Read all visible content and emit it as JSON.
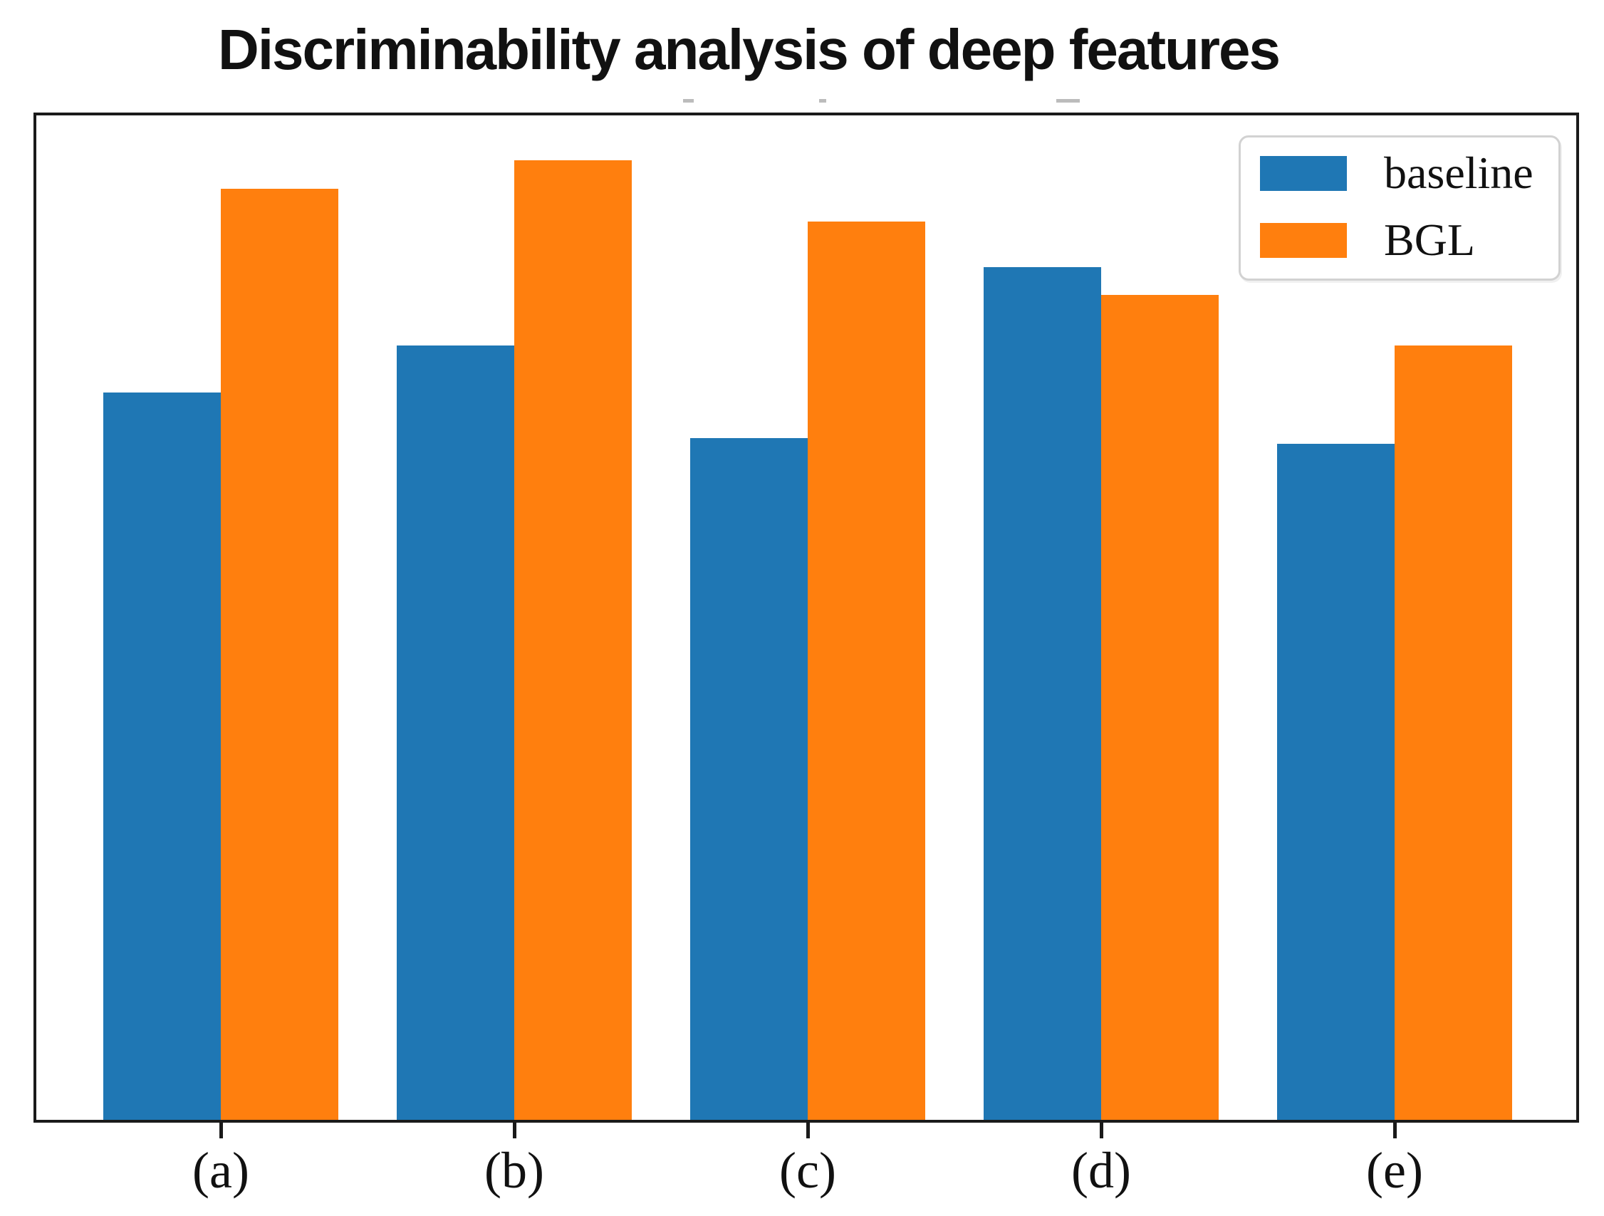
{
  "chart_data": {
    "type": "bar",
    "title": "Discriminability analysis of deep features",
    "categories": [
      "(a)",
      "(b)",
      "(c)",
      "(d)",
      "(e)"
    ],
    "series": [
      {
        "name": "baseline",
        "color": "#1f77b4",
        "values": [
          0.724,
          0.771,
          0.679,
          0.849,
          0.673
        ]
      },
      {
        "name": "BGL",
        "color": "#ff7f0e",
        "values": [
          0.927,
          0.955,
          0.894,
          0.821,
          0.771
        ]
      }
    ],
    "xlabel": "",
    "ylabel": "",
    "ylim": [
      0,
      1
    ],
    "y_axis_labels_shown": false,
    "grid": false,
    "legend_position": "upper right"
  }
}
